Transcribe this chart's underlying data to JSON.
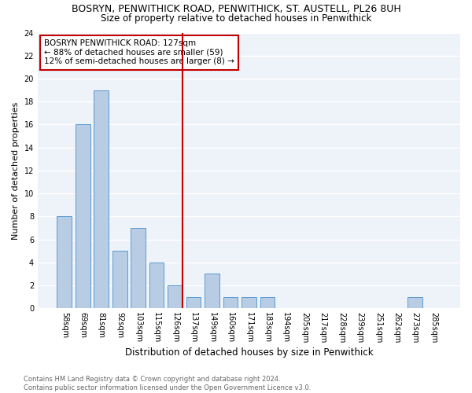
{
  "title": "BOSRYN, PENWITHICK ROAD, PENWITHICK, ST. AUSTELL, PL26 8UH",
  "subtitle": "Size of property relative to detached houses in Penwithick",
  "xlabel": "Distribution of detached houses by size in Penwithick",
  "ylabel": "Number of detached properties",
  "categories": [
    "58sqm",
    "69sqm",
    "81sqm",
    "92sqm",
    "103sqm",
    "115sqm",
    "126sqm",
    "137sqm",
    "149sqm",
    "160sqm",
    "171sqm",
    "183sqm",
    "194sqm",
    "205sqm",
    "217sqm",
    "228sqm",
    "239sqm",
    "251sqm",
    "262sqm",
    "273sqm",
    "285sqm"
  ],
  "values": [
    8,
    16,
    19,
    5,
    7,
    4,
    2,
    1,
    3,
    1,
    1,
    1,
    0,
    0,
    0,
    0,
    0,
    0,
    0,
    1,
    0
  ],
  "bar_color": "#b8cce4",
  "bar_edge_color": "#5b9bd5",
  "vline_x_index": 6,
  "vline_color": "#c00000",
  "annotation_text": "BOSRYN PENWITHICK ROAD: 127sqm\n← 88% of detached houses are smaller (59)\n12% of semi-detached houses are larger (8) →",
  "annotation_box_color": "#c00000",
  "ylim": [
    0,
    24
  ],
  "yticks": [
    0,
    2,
    4,
    6,
    8,
    10,
    12,
    14,
    16,
    18,
    20,
    22,
    24
  ],
  "footnote": "Contains HM Land Registry data © Crown copyright and database right 2024.\nContains public sector information licensed under the Open Government Licence v3.0.",
  "bg_color": "#eef2f9",
  "grid_color": "#ffffff",
  "title_fontsize": 9,
  "subtitle_fontsize": 8.5,
  "xlabel_fontsize": 8.5,
  "ylabel_fontsize": 8,
  "tick_fontsize": 7,
  "annotation_fontsize": 7.5,
  "footnote_fontsize": 6
}
